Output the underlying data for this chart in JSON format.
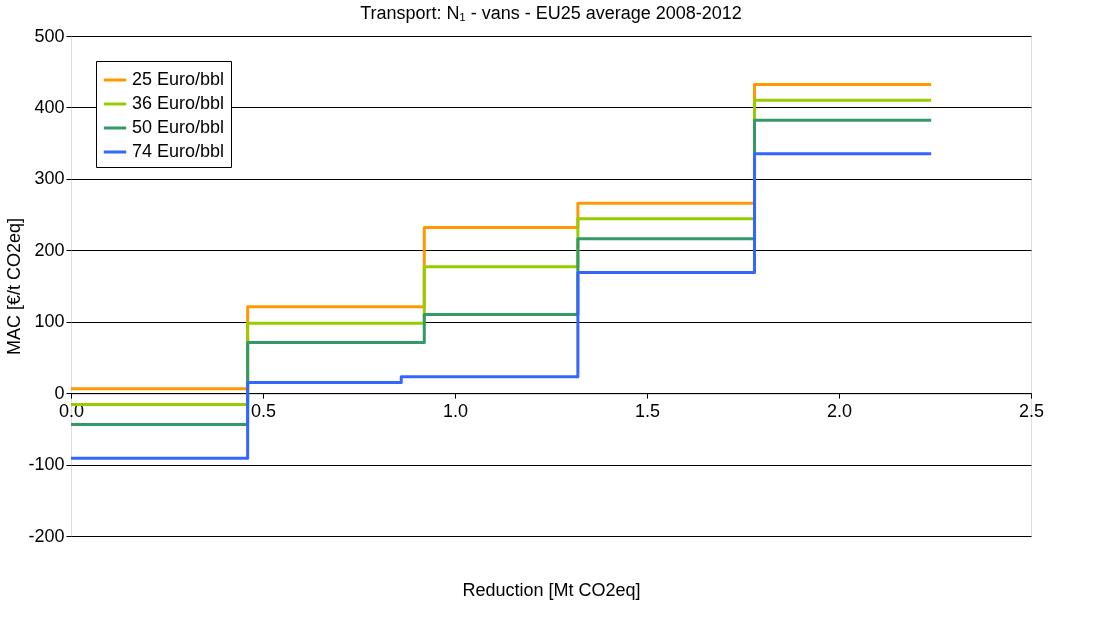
{
  "chart_data": {
    "type": "step",
    "title": "Transport: N₁ - vans - EU25 average 2008-2012",
    "xlabel": "Reduction [Mt CO2eq]",
    "ylabel": "MAC [€/t CO2eq]",
    "xlim": [
      0,
      2.5
    ],
    "xticks": [
      {
        "value": 0,
        "label": "0.0"
      },
      {
        "value": 0.5,
        "label": "0.5"
      },
      {
        "value": 1,
        "label": "1.0"
      },
      {
        "value": 1.5,
        "label": "1.5"
      },
      {
        "value": 2,
        "label": "2.0"
      },
      {
        "value": 2.5,
        "label": "2.5"
      }
    ],
    "ylim": [
      -200,
      500
    ],
    "yticks": [
      -200,
      -100,
      0,
      100,
      200,
      300,
      400,
      500
    ],
    "grid": "y",
    "legend": "top left",
    "series": [
      {
        "name": "25 Euro/bbl",
        "color": "#ff9900",
        "x": [
          0,
          0.46,
          0.92,
          1.32,
          1.78,
          2.24
        ],
        "values": [
          6,
          121,
          232,
          266,
          432,
          432
        ]
      },
      {
        "name": "36 Euro/bbl",
        "color": "#99cc00",
        "x": [
          0,
          0.46,
          0.92,
          1.32,
          1.78,
          2.24
        ],
        "values": [
          -16,
          98,
          177,
          244,
          410,
          410
        ]
      },
      {
        "name": "50 Euro/bbl",
        "color": "#339966",
        "x": [
          0,
          0.46,
          0.92,
          1.32,
          1.78,
          2.24
        ],
        "values": [
          -44,
          71,
          110,
          216,
          382,
          382
        ]
      },
      {
        "name": "74 Euro/bbl",
        "color": "#3366ff",
        "x": [
          0,
          0.46,
          0.86,
          1.32,
          1.78,
          2.24
        ],
        "values": [
          -91,
          15,
          23,
          169,
          335,
          335
        ]
      }
    ]
  }
}
